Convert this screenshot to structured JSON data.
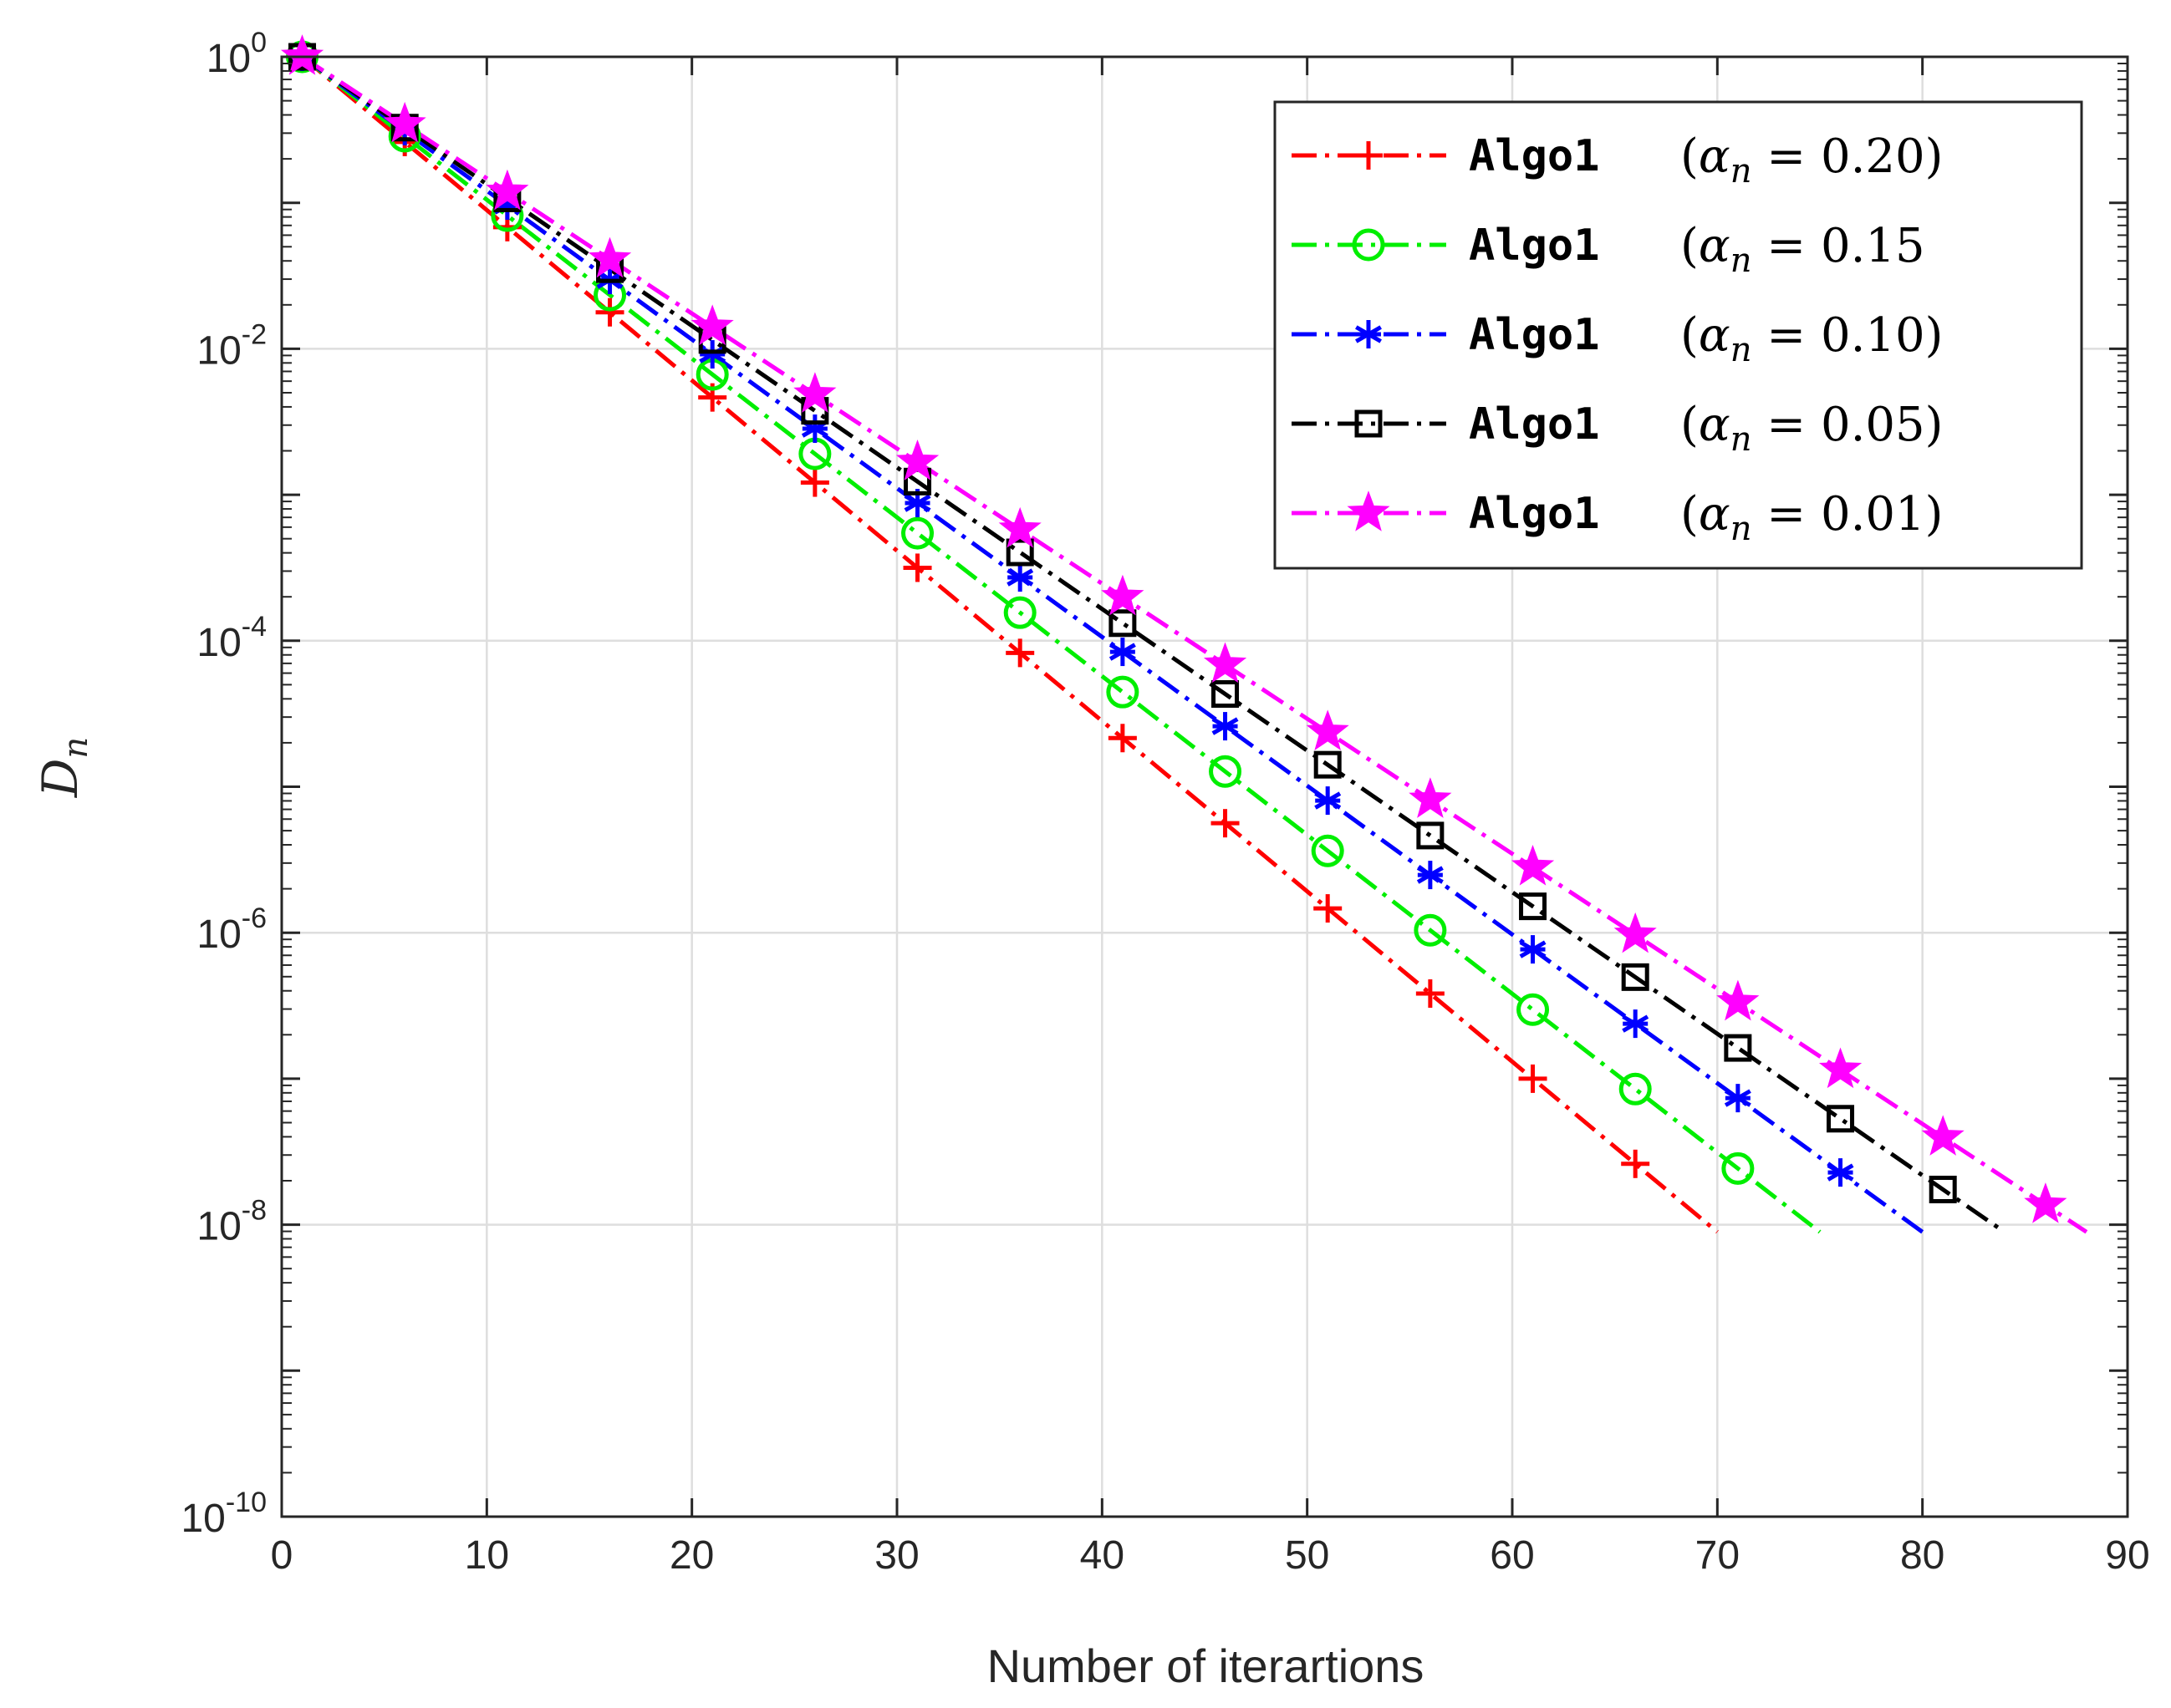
{
  "chart_data": {
    "type": "line",
    "title": "",
    "xlabel": "Number of iterartions",
    "ylabel": "D",
    "ylabel_sub": "n",
    "xlim": [
      0,
      90
    ],
    "ylim_log10": [
      -10,
      0
    ],
    "yscale": "log",
    "grid": true,
    "legend_position": "top-right",
    "x_ticks": [
      "0",
      "10",
      "20",
      "30",
      "40",
      "50",
      "60",
      "70",
      "80",
      "90"
    ],
    "y_ticks": [
      {
        "base": "10",
        "exp": "0"
      },
      {
        "base": "10",
        "exp": "-2"
      },
      {
        "base": "10",
        "exp": "-4"
      },
      {
        "base": "10",
        "exp": "-6"
      },
      {
        "base": "10",
        "exp": "-8"
      },
      {
        "base": "10",
        "exp": "-10"
      }
    ],
    "series": [
      {
        "name": "Algo1 (α_n = 0.20)",
        "legend_prefix": "Algo1",
        "legend_var": "α",
        "legend_sub": "n",
        "legend_value": "0.20",
        "legend_close": ")",
        "color": "#ff0000",
        "marker": "plus",
        "x_start": 1,
        "x_end": 70,
        "logy_start": 0,
        "logy_end": -8.05,
        "markers_x": [
          1,
          6,
          11,
          16,
          21,
          26,
          31,
          36,
          41,
          46,
          51,
          56,
          61,
          66
        ]
      },
      {
        "name": "Algo1 (α_n = 0.15",
        "legend_prefix": "Algo1",
        "legend_var": "α",
        "legend_sub": "n",
        "legend_value": "0.15",
        "legend_close": "",
        "color": "#00ee00",
        "marker": "circle",
        "x_start": 1,
        "x_end": 75,
        "logy_start": 0,
        "logy_end": -8.05,
        "markers_x": [
          1,
          6,
          11,
          16,
          21,
          26,
          31,
          36,
          41,
          46,
          51,
          56,
          61,
          66,
          71
        ]
      },
      {
        "name": "Algo1 (α_n = 0.10)",
        "legend_prefix": "Algo1",
        "legend_var": "α",
        "legend_sub": "n",
        "legend_value": "0.10",
        "legend_close": ")",
        "color": "#0000ff",
        "marker": "asterisk",
        "x_start": 1,
        "x_end": 80,
        "logy_start": 0,
        "logy_end": -8.05,
        "markers_x": [
          1,
          6,
          11,
          16,
          21,
          26,
          31,
          36,
          41,
          46,
          51,
          56,
          61,
          66,
          71,
          76
        ]
      },
      {
        "name": "Algo1 (α_n = 0.05)",
        "legend_prefix": "Algo1",
        "legend_var": "α",
        "legend_sub": "n",
        "legend_value": "0.05",
        "legend_close": ")",
        "color": "#000000",
        "marker": "square",
        "x_start": 1,
        "x_end": 84,
        "logy_start": 0,
        "logy_end": -8.05,
        "markers_x": [
          1,
          6,
          11,
          16,
          21,
          26,
          31,
          36,
          41,
          46,
          51,
          56,
          61,
          66,
          71,
          76,
          81
        ]
      },
      {
        "name": "Algo1 (α_n = 0.01)",
        "legend_prefix": "Algo1",
        "legend_var": "α",
        "legend_sub": "n",
        "legend_value": "0.01",
        "legend_close": ")",
        "color": "#ff00ff",
        "marker": "pentagram",
        "x_start": 1,
        "x_end": 88,
        "logy_start": 0,
        "logy_end": -8.05,
        "markers_x": [
          1,
          6,
          11,
          16,
          21,
          26,
          31,
          36,
          41,
          46,
          51,
          56,
          61,
          66,
          71,
          76,
          81,
          86
        ]
      }
    ]
  }
}
